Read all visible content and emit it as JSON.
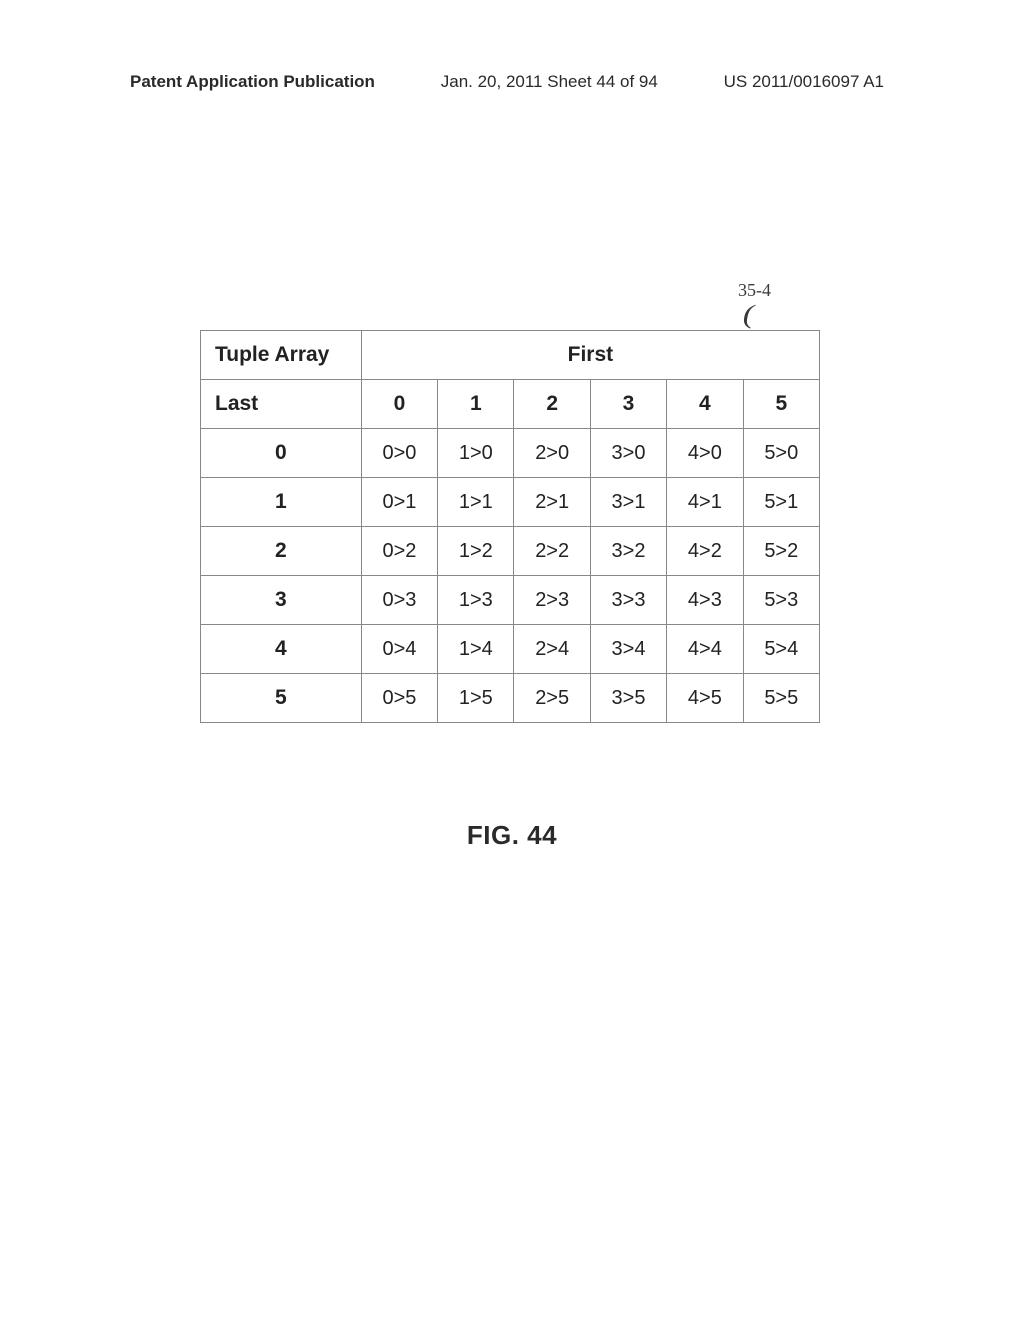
{
  "header": {
    "left": "Patent Application Publication",
    "center": "Jan. 20, 2011  Sheet 44 of 94",
    "right": "US 2011/0016097 A1"
  },
  "refLabel": "35-4",
  "table": {
    "tupleArrayLabel": "Tuple Array",
    "firstLabel": "First",
    "lastLabel": "Last",
    "colHeaders": [
      "0",
      "1",
      "2",
      "3",
      "4",
      "5"
    ],
    "rowHeaders": [
      "0",
      "1",
      "2",
      "3",
      "4",
      "5"
    ],
    "rows": [
      [
        "0>0",
        "1>0",
        "2>0",
        "3>0",
        "4>0",
        "5>0"
      ],
      [
        "0>1",
        "1>1",
        "2>1",
        "3>1",
        "4>1",
        "5>1"
      ],
      [
        "0>2",
        "1>2",
        "2>2",
        "3>2",
        "4>2",
        "5>2"
      ],
      [
        "0>3",
        "1>3",
        "2>3",
        "3>3",
        "4>3",
        "5>3"
      ],
      [
        "0>4",
        "1>4",
        "2>4",
        "3>4",
        "4>4",
        "5>4"
      ],
      [
        "0>5",
        "1>5",
        "2>5",
        "3>5",
        "4>5",
        "5>5"
      ]
    ]
  },
  "figCaption": "FIG. 44",
  "colors": {
    "border": "#888888",
    "text": "#222222",
    "background": "#ffffff"
  },
  "fonts": {
    "body": "Arial",
    "caption": "Arial",
    "refLabel": "Times New Roman"
  }
}
